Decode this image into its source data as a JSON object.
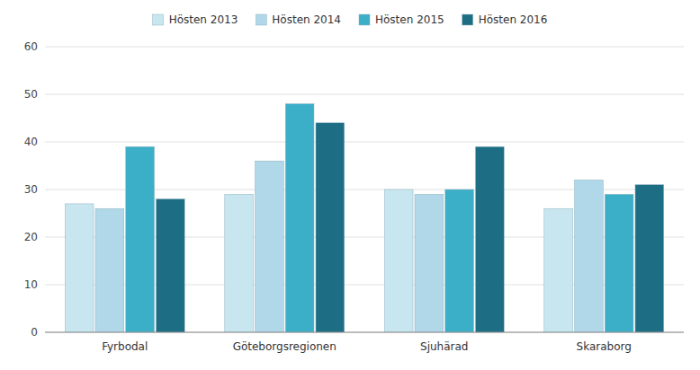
{
  "chart_data": {
    "type": "bar",
    "categories": [
      "Fyrbodal",
      "Göteborgsregionen",
      "Sjuhärad",
      "Skaraborg"
    ],
    "series": [
      {
        "name": "Hösten 2013",
        "color": "#c8e6ef",
        "values": [
          27,
          29,
          30,
          26
        ]
      },
      {
        "name": "Hösten 2014",
        "color": "#b0d8e8",
        "values": [
          26,
          36,
          29,
          32
        ]
      },
      {
        "name": "Hösten 2015",
        "color": "#3baec8",
        "values": [
          39,
          48,
          30,
          29
        ]
      },
      {
        "name": "Hösten 2016",
        "color": "#1d6e84",
        "values": [
          28,
          44,
          39,
          31
        ]
      }
    ],
    "ylim": [
      0,
      60
    ],
    "yticks": [
      0,
      10,
      20,
      30,
      40,
      50,
      60
    ],
    "grid": true,
    "legend": "top"
  }
}
